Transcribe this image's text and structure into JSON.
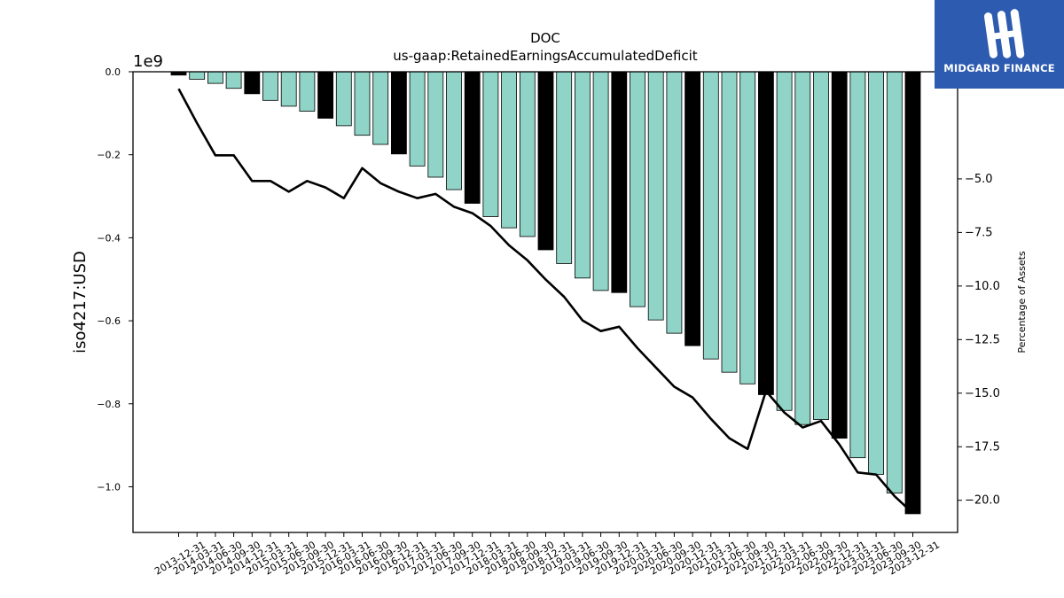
{
  "logo": {
    "text": "MIDGARD FINANCE",
    "background": "#2d5bb0"
  },
  "chart_data": {
    "type": "bar",
    "title": "DOC",
    "subtitle": "us-gaap:RetainedEarningsAccumulatedDeficit",
    "ylabel": "iso4217:USD",
    "y_offset_label": "1e9",
    "y2label": "Percentage of Assets",
    "ylim": [
      -1.11,
      0.0
    ],
    "y2lim": [
      -21.5,
      0.0
    ],
    "yticks": [
      "0.0",
      "−0.2",
      "−0.4",
      "−0.6",
      "−0.8",
      "−1.0"
    ],
    "y2ticks": [
      "−5.0",
      "−7.5",
      "−10.0",
      "−12.5",
      "−15.0",
      "−17.5",
      "−20.0"
    ],
    "bar_color_quarter": "#8fd4c7",
    "bar_color_year_end": "#000000",
    "line_color": "#000000",
    "categories": [
      "2013-12-31",
      "2014-03-31",
      "2014-06-30",
      "2014-09-30",
      "2014-12-31",
      "2015-03-31",
      "2015-06-30",
      "2015-09-30",
      "2015-12-31",
      "2016-03-31",
      "2016-06-30",
      "2016-09-30",
      "2016-12-31",
      "2017-03-31",
      "2017-06-30",
      "2017-09-30",
      "2017-12-31",
      "2018-03-31",
      "2018-06-30",
      "2018-09-30",
      "2018-12-31",
      "2019-03-31",
      "2019-06-30",
      "2019-09-30",
      "2019-12-31",
      "2020-03-31",
      "2020-06-30",
      "2020-09-30",
      "2020-12-31",
      "2021-03-31",
      "2021-06-30",
      "2021-09-30",
      "2021-12-31",
      "2022-03-31",
      "2022-06-30",
      "2022-09-30",
      "2022-12-31",
      "2023-03-31",
      "2023-06-30",
      "2023-09-30",
      "2023-12-31"
    ],
    "series": [
      {
        "values": [
          -0.008,
          -0.018,
          -0.028,
          -0.04,
          -0.053,
          -0.069,
          -0.083,
          -0.095,
          -0.112,
          -0.13,
          -0.153,
          -0.175,
          -0.198,
          -0.227,
          -0.254,
          -0.284,
          -0.317,
          -0.349,
          -0.376,
          -0.397,
          -0.429,
          -0.462,
          -0.497,
          -0.527,
          -0.532,
          -0.566,
          -0.598,
          -0.63,
          -0.66,
          -0.692,
          -0.724,
          -0.752,
          -0.778,
          -0.816,
          -0.85,
          -0.838,
          -0.883,
          -0.93,
          -0.97,
          -1.015,
          -1.065
        ]
      },
      {
        "axis": "right",
        "type": "line",
        "values": [
          -0.8,
          -2.4,
          -3.9,
          -3.9,
          -5.1,
          -5.1,
          -5.6,
          -5.1,
          -5.4,
          -5.9,
          -4.5,
          -5.2,
          -5.6,
          -5.9,
          -5.7,
          -6.3,
          -6.6,
          -7.2,
          -8.1,
          -8.8,
          -9.7,
          -10.5,
          -11.6,
          -12.1,
          -11.9,
          -12.9,
          -13.8,
          -14.7,
          -15.2,
          -16.2,
          -17.1,
          -17.6,
          -14.9,
          -15.9,
          -16.6,
          -16.3,
          -17.4,
          -18.7,
          -18.8,
          -19.8,
          -20.6
        ]
      }
    ]
  }
}
